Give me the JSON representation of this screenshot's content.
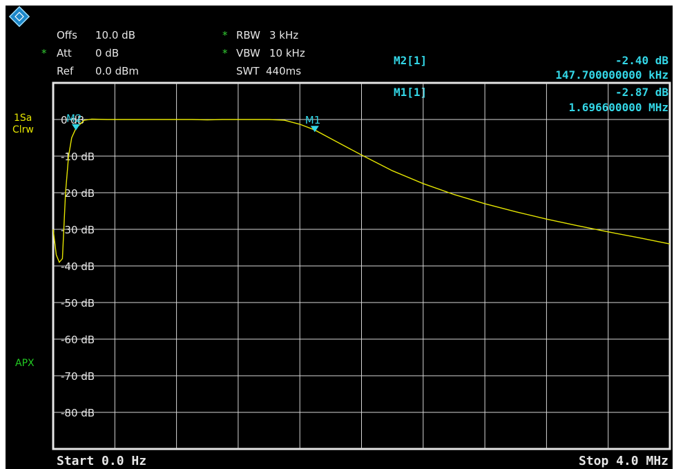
{
  "colors": {
    "background": "#000000",
    "text": "#e6e6e6",
    "grid": "#d8d8d8",
    "trace": "#e6e600",
    "marker": "#33d6e6",
    "star": "#33cc33",
    "label_yellow": "#e6e600",
    "label_green": "#22cc22"
  },
  "logo": {
    "icon": "rohde-schwarz-logo-icon"
  },
  "settings": {
    "offs_label": "Offs",
    "offs_value": "10.0 dB",
    "att_label": "Att",
    "att_value": "0 dB",
    "ref_label": "Ref",
    "ref_value": "0.0 dBm",
    "rbw_label": "RBW",
    "rbw_value": "3 kHz",
    "vbw_label": "VBW",
    "vbw_value": "10 kHz",
    "swt_label": "SWT",
    "swt_value": "440ms",
    "star": "*"
  },
  "markers": [
    {
      "name": "M2[1]",
      "level": "-2.40 dB",
      "freq": "147.700000000 kHz"
    },
    {
      "name": "M1[1]",
      "level": "-2.87 dB",
      "freq": "1.696600000 MHz"
    }
  ],
  "trace_side": {
    "line1": "1Sa",
    "line2": "Clrw",
    "apx": "APX"
  },
  "footer": {
    "start": "Start 0.0 Hz",
    "stop": "Stop 4.0 MHz"
  },
  "chart_data": {
    "type": "line",
    "xlim": [
      0,
      4.0
    ],
    "x_unit": "MHz",
    "ylim": [
      -90,
      10
    ],
    "y_tick_labels": [
      "0 dB",
      "-10 dB",
      "-20 dB",
      "-30 dB",
      "-40 dB",
      "-50 dB",
      "-60 dB",
      "-70 dB",
      "-80 dB"
    ],
    "y_tick_values": [
      0,
      -10,
      -20,
      -30,
      -40,
      -50,
      -60,
      -70,
      -80
    ],
    "x_divisions": 10,
    "grid": true,
    "series": [
      {
        "x": [
          0,
          0.02,
          0.04,
          0.06,
          0.08,
          0.1,
          0.12,
          0.1477,
          0.2,
          0.25,
          0.35,
          0.5,
          0.7,
          0.9,
          1.0,
          1.1,
          1.2,
          1.3,
          1.4,
          1.5,
          1.6,
          1.6966,
          1.8,
          2.0,
          2.2,
          2.4,
          2.6,
          2.8,
          3.0,
          3.2,
          3.4,
          3.6,
          3.8,
          4.0
        ],
        "y": [
          -30,
          -37,
          -39,
          -38,
          -20,
          -10,
          -5,
          -2.4,
          -0.2,
          0.1,
          0,
          0,
          0,
          0,
          -0.1,
          0,
          0,
          0,
          0,
          -0.2,
          -1.3,
          -2.87,
          -5.2,
          -9.7,
          -14,
          -17.5,
          -20.5,
          -23,
          -25.2,
          -27.2,
          -29,
          -30.7,
          -32.3,
          -34
        ]
      }
    ],
    "markers": [
      {
        "label": "M1",
        "x": 1.6966,
        "y": -2.87
      },
      {
        "label": "M2",
        "x": 0.1477,
        "y": -2.4
      }
    ]
  }
}
